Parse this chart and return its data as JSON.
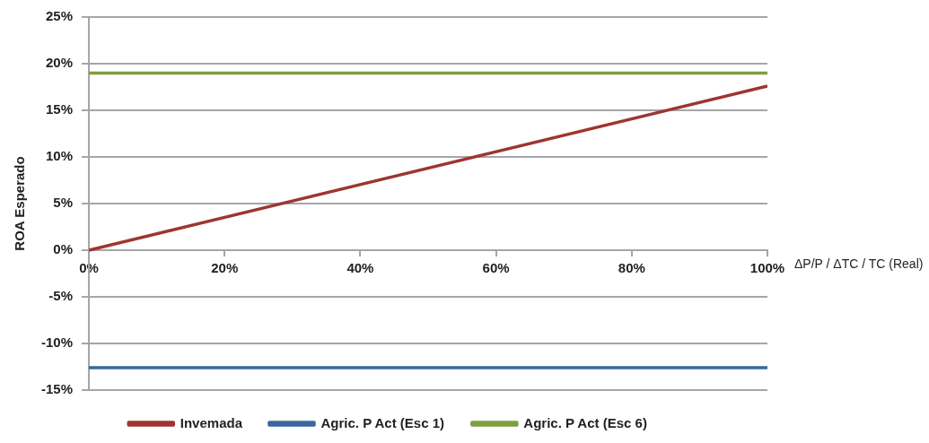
{
  "chart_data": {
    "type": "line",
    "ylabel": "ROA Esperado",
    "xlabel": "ΔP/P / ΔTC / TC (Real)",
    "x": [
      0,
      100
    ],
    "series": [
      {
        "name": "Invemada",
        "color": "#9e3530",
        "values": [
          0,
          17.6
        ]
      },
      {
        "name": "Agric. P Act (Esc 1)",
        "color": "#3b67a0",
        "values": [
          -12.6,
          -12.6
        ]
      },
      {
        "name": "Agric. P Act (Esc 6)",
        "color": "#7f9f3e",
        "values": [
          19,
          19
        ]
      }
    ],
    "xlim": [
      0,
      100
    ],
    "xticks": [
      {
        "value": 0,
        "label": "0%"
      },
      {
        "value": 20,
        "label": "20%"
      },
      {
        "value": 40,
        "label": "40%"
      },
      {
        "value": 60,
        "label": "60%"
      },
      {
        "value": 80,
        "label": "80%"
      },
      {
        "value": 100,
        "label": "100%"
      }
    ],
    "ylim": [
      -15,
      25
    ],
    "yticks": [
      {
        "value": -15,
        "label": "-15%"
      },
      {
        "value": -10,
        "label": "-10%"
      },
      {
        "value": -5,
        "label": "-5%"
      },
      {
        "value": 0,
        "label": "0%"
      },
      {
        "value": 5,
        "label": "5%"
      },
      {
        "value": 10,
        "label": "10%"
      },
      {
        "value": 15,
        "label": "15%"
      },
      {
        "value": 20,
        "label": "20%"
      },
      {
        "value": 25,
        "label": "25%"
      }
    ],
    "grid": "y",
    "legend": "bottom",
    "marker": "none",
    "line_style": "solid"
  }
}
